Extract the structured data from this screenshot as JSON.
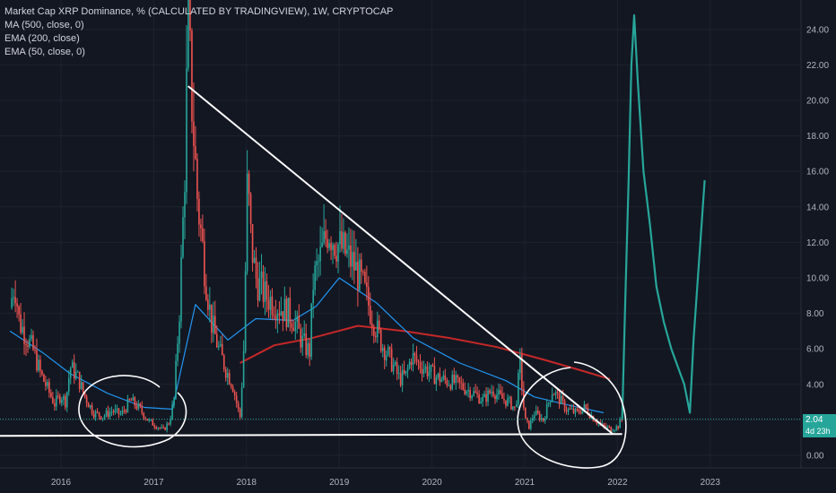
{
  "legend": {
    "title": "Market Cap XRP Dominance, % (CALCULATED BY TRADINGVIEW), 1W, CRYPTOCAP",
    "indicators": [
      "MA (500, close, 0)",
      "EMA (200, close)",
      "EMA (50, close, 0)"
    ]
  },
  "last_price": {
    "value": "2.04",
    "countdown": "4d 23h"
  },
  "colors": {
    "background": "#131722",
    "candle_up": "#26a69a",
    "candle_down": "#ef5350",
    "ema200": "#c62828",
    "ema50": "#2196f3",
    "ma500": "#26a69a",
    "drawings": "#ffffff",
    "price_line": "#26a69a"
  },
  "chart_data": {
    "type": "candlestick",
    "x_axis": {
      "ticks": [
        "2016",
        "2017",
        "2018",
        "2019",
        "2020",
        "2021",
        "2022",
        "2023"
      ],
      "tick_years": [
        2016,
        2017,
        2018,
        2019,
        2020,
        2021,
        2022,
        2023
      ]
    },
    "y_axis": {
      "ticks": [
        "0.00",
        "2.00",
        "4.00",
        "6.00",
        "8.00",
        "10.00",
        "12.00",
        "14.00",
        "16.00",
        "18.00",
        "20.00",
        "22.00",
        "24.00"
      ],
      "ylim": [
        -0.6,
        25.2
      ]
    },
    "price_path": [
      [
        2015.45,
        8.3
      ],
      [
        2015.5,
        9.8
      ],
      [
        2015.55,
        7.5
      ],
      [
        2015.62,
        6.8
      ],
      [
        2015.7,
        5.9
      ],
      [
        2015.78,
        4.6
      ],
      [
        2015.85,
        3.8
      ],
      [
        2015.93,
        2.9
      ],
      [
        2016.0,
        3.4
      ],
      [
        2016.05,
        3.0
      ],
      [
        2016.1,
        5.0
      ],
      [
        2016.18,
        4.4
      ],
      [
        2016.25,
        3.4
      ],
      [
        2016.35,
        2.4
      ],
      [
        2016.45,
        2.2
      ],
      [
        2016.55,
        2.5
      ],
      [
        2016.65,
        2.3
      ],
      [
        2016.75,
        3.1
      ],
      [
        2016.85,
        2.6
      ],
      [
        2016.95,
        1.9
      ],
      [
        2017.05,
        1.6
      ],
      [
        2017.1,
        1.4
      ],
      [
        2017.17,
        1.9
      ],
      [
        2017.22,
        3.2
      ],
      [
        2017.28,
        8.5
      ],
      [
        2017.33,
        15.0
      ],
      [
        2017.37,
        24.5
      ],
      [
        2017.42,
        19.0
      ],
      [
        2017.47,
        14.5
      ],
      [
        2017.55,
        10.5
      ],
      [
        2017.62,
        7.5
      ],
      [
        2017.7,
        6.0
      ],
      [
        2017.78,
        4.8
      ],
      [
        2017.85,
        4.0
      ],
      [
        2017.9,
        2.8
      ],
      [
        2017.93,
        2.1
      ],
      [
        2017.97,
        6.0
      ],
      [
        2018.01,
        15.5
      ],
      [
        2018.05,
        12.0
      ],
      [
        2018.1,
        10.0
      ],
      [
        2018.2,
        9.0
      ],
      [
        2018.3,
        8.6
      ],
      [
        2018.4,
        8.2
      ],
      [
        2018.5,
        7.8
      ],
      [
        2018.6,
        6.4
      ],
      [
        2018.68,
        5.8
      ],
      [
        2018.72,
        9.8
      ],
      [
        2018.8,
        11.2
      ],
      [
        2018.88,
        12.8
      ],
      [
        2018.95,
        12.1
      ],
      [
        2019.05,
        11.5
      ],
      [
        2019.15,
        10.8
      ],
      [
        2019.25,
        9.6
      ],
      [
        2019.35,
        7.9
      ],
      [
        2019.45,
        6.4
      ],
      [
        2019.55,
        5.4
      ],
      [
        2019.65,
        4.3
      ],
      [
        2019.72,
        4.5
      ],
      [
        2019.78,
        5.6
      ],
      [
        2019.85,
        5.2
      ],
      [
        2019.95,
        4.8
      ],
      [
        2020.05,
        4.4
      ],
      [
        2020.15,
        4.2
      ],
      [
        2020.25,
        4.1
      ],
      [
        2020.35,
        3.8
      ],
      [
        2020.45,
        3.5
      ],
      [
        2020.55,
        3.1
      ],
      [
        2020.65,
        3.7
      ],
      [
        2020.75,
        3.2
      ],
      [
        2020.83,
        3.0
      ],
      [
        2020.9,
        2.6
      ],
      [
        2020.95,
        5.2
      ],
      [
        2021.0,
        2.0
      ],
      [
        2021.05,
        1.6
      ],
      [
        2021.1,
        2.4
      ],
      [
        2021.2,
        2.0
      ],
      [
        2021.3,
        3.7
      ],
      [
        2021.38,
        3.1
      ],
      [
        2021.45,
        2.6
      ],
      [
        2021.55,
        2.4
      ],
      [
        2021.65,
        2.7
      ],
      [
        2021.72,
        2.2
      ],
      [
        2021.78,
        1.9
      ],
      [
        2021.85,
        1.6
      ],
      [
        2021.93,
        1.5
      ],
      [
        2022.0,
        1.6
      ],
      [
        2022.05,
        2.04
      ]
    ],
    "ema200": [
      [
        2017.93,
        5.2
      ],
      [
        2018.3,
        6.2
      ],
      [
        2018.7,
        6.6
      ],
      [
        2019.2,
        7.3
      ],
      [
        2019.7,
        7.0
      ],
      [
        2020.2,
        6.6
      ],
      [
        2020.7,
        6.1
      ],
      [
        2021.2,
        5.4
      ],
      [
        2021.6,
        4.8
      ],
      [
        2021.92,
        4.3
      ]
    ],
    "ema50": [
      [
        2015.45,
        7.0
      ],
      [
        2015.8,
        5.8
      ],
      [
        2016.1,
        4.6
      ],
      [
        2016.5,
        3.5
      ],
      [
        2016.9,
        2.7
      ],
      [
        2017.2,
        2.6
      ],
      [
        2017.45,
        8.5
      ],
      [
        2017.8,
        6.5
      ],
      [
        2018.1,
        7.7
      ],
      [
        2018.5,
        7.6
      ],
      [
        2018.75,
        8.4
      ],
      [
        2019.0,
        10.0
      ],
      [
        2019.4,
        8.6
      ],
      [
        2019.8,
        6.6
      ],
      [
        2020.3,
        5.2
      ],
      [
        2020.8,
        4.2
      ],
      [
        2021.1,
        3.3
      ],
      [
        2021.5,
        2.8
      ],
      [
        2021.85,
        2.4
      ]
    ],
    "ma500": [
      [
        2022.05,
        2.0
      ],
      [
        2022.08,
        8.0
      ],
      [
        2022.12,
        15.5
      ],
      [
        2022.15,
        22.0
      ],
      [
        2022.18,
        24.8
      ],
      [
        2022.22,
        21.0
      ],
      [
        2022.28,
        16.0
      ],
      [
        2022.35,
        13.0
      ],
      [
        2022.42,
        9.5
      ],
      [
        2022.5,
        7.5
      ],
      [
        2022.58,
        6.0
      ],
      [
        2022.65,
        5.0
      ],
      [
        2022.72,
        4.0
      ],
      [
        2022.78,
        2.4
      ],
      [
        2022.82,
        6.5
      ],
      [
        2022.88,
        11.0
      ],
      [
        2022.94,
        15.5
      ]
    ],
    "annotations": {
      "descending_trendline": [
        [
          2017.37,
          20.8
        ],
        [
          2021.95,
          1.2
        ]
      ],
      "support_line": [
        [
          2015.4,
          1.1
        ],
        [
          2022.05,
          1.2
        ]
      ]
    }
  }
}
